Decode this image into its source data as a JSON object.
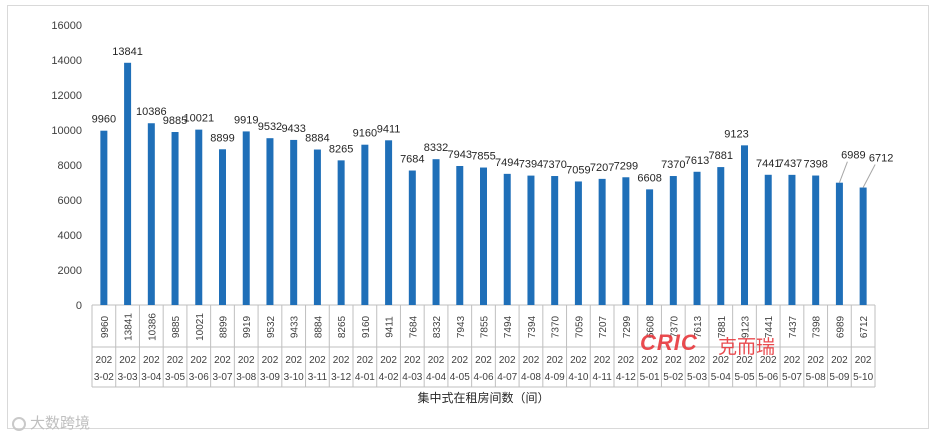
{
  "chart_data": {
    "type": "bar",
    "title": "",
    "xlabel": "集中式在租房间数（间）",
    "ylabel": "",
    "ylim": [
      0,
      16000
    ],
    "yticks": [
      0,
      2000,
      4000,
      6000,
      8000,
      10000,
      12000,
      14000,
      16000
    ],
    "bar_color": "#1f6fb8",
    "grid": false,
    "categories": [
      "2023-02",
      "2023-03",
      "2023-04",
      "2023-05",
      "2023-06",
      "2023-07",
      "2023-08",
      "2023-09",
      "2023-10",
      "2023-11",
      "2023-12",
      "2024-01",
      "2024-02",
      "2024-03",
      "2024-04",
      "2024-05",
      "2024-06",
      "2024-07",
      "2024-08",
      "2024-09",
      "2024-10",
      "2024-11",
      "2024-12",
      "2025-01",
      "2025-02",
      "2025-03",
      "2025-04",
      "2025-05",
      "2025-06",
      "2025-07",
      "2025-08",
      "2025-09",
      "2025-10"
    ],
    "values": [
      9960,
      13841,
      10386,
      9885,
      10021,
      8899,
      9919,
      9532,
      9433,
      8884,
      8265,
      9160,
      9411,
      7684,
      8332,
      7943,
      7855,
      7494,
      7394,
      7370,
      7059,
      7207,
      7299,
      6608,
      7370,
      7613,
      7881,
      9123,
      7441,
      7437,
      7398,
      6989,
      6712
    ],
    "table_values": [
      "9960",
      "13841",
      "10386",
      "9885",
      "10021",
      "8899",
      "9919",
      "9532",
      "9433",
      "8884",
      "8265",
      "9160",
      "9411",
      "7684",
      "8332",
      "7943",
      "7855",
      "7494",
      "7394",
      "7370",
      "7059",
      "7207",
      "7299",
      "6608",
      "7370",
      "7613",
      "7881",
      "9123",
      "7441",
      "7437",
      "7398",
      "6989",
      "6712"
    ],
    "category_line1": [
      "202",
      "202",
      "202",
      "202",
      "202",
      "202",
      "202",
      "202",
      "202",
      "202",
      "202",
      "202",
      "202",
      "202",
      "202",
      "202",
      "202",
      "202",
      "202",
      "202",
      "202",
      "202",
      "202",
      "202",
      "202",
      "202",
      "202",
      "202",
      "202",
      "202",
      "202",
      "202",
      "202"
    ],
    "category_line2": [
      "3-02",
      "3-03",
      "3-04",
      "3-05",
      "3-06",
      "3-07",
      "3-08",
      "3-09",
      "3-10",
      "3-11",
      "3-12",
      "4-01",
      "4-02",
      "4-03",
      "4-04",
      "4-05",
      "4-06",
      "4-07",
      "4-08",
      "4-09",
      "4-10",
      "4-11",
      "4-12",
      "5-01",
      "5-02",
      "5-03",
      "5-04",
      "5-05",
      "5-06",
      "5-07",
      "5-08",
      "5-09",
      "5-10"
    ]
  },
  "watermarks": {
    "brand": "CRIC",
    "brand_cn": "克而瑞",
    "bottom": "大数跨境"
  }
}
